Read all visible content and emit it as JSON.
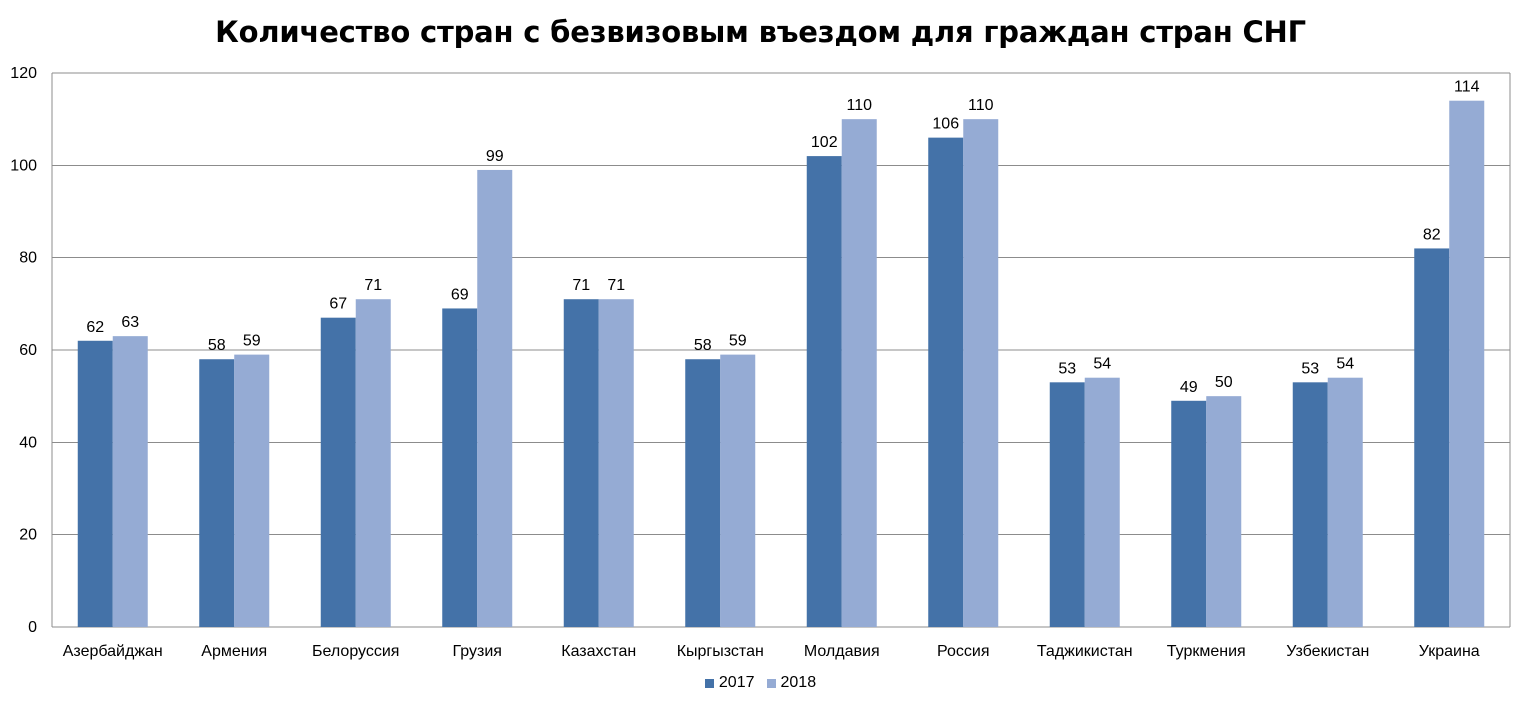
{
  "chart_data": {
    "type": "bar",
    "title": "Количество стран с безвизовым въездом для граждан стран СНГ",
    "xlabel": "",
    "ylabel": "",
    "ylim": [
      0,
      120
    ],
    "yticks": [
      "0",
      "20",
      "40",
      "60",
      "80",
      "100",
      "120"
    ],
    "grid": true,
    "legend_position": "bottom",
    "categories": [
      "Азербайджан",
      "Армения",
      "Белоруссия",
      "Грузия",
      "Казахстан",
      "Кыргызстан",
      "Молдавия",
      "Россия",
      "Таджикистан",
      "Туркмения",
      "Узбекистан",
      "Украина"
    ],
    "series": [
      {
        "name": "2017",
        "color": "#4472a8",
        "values": [
          62,
          58,
          67,
          69,
          71,
          58,
          102,
          106,
          53,
          49,
          53,
          82
        ]
      },
      {
        "name": "2018",
        "color": "#95abd4",
        "values": [
          63,
          59,
          71,
          99,
          71,
          59,
          110,
          110,
          54,
          50,
          54,
          114
        ]
      }
    ]
  }
}
